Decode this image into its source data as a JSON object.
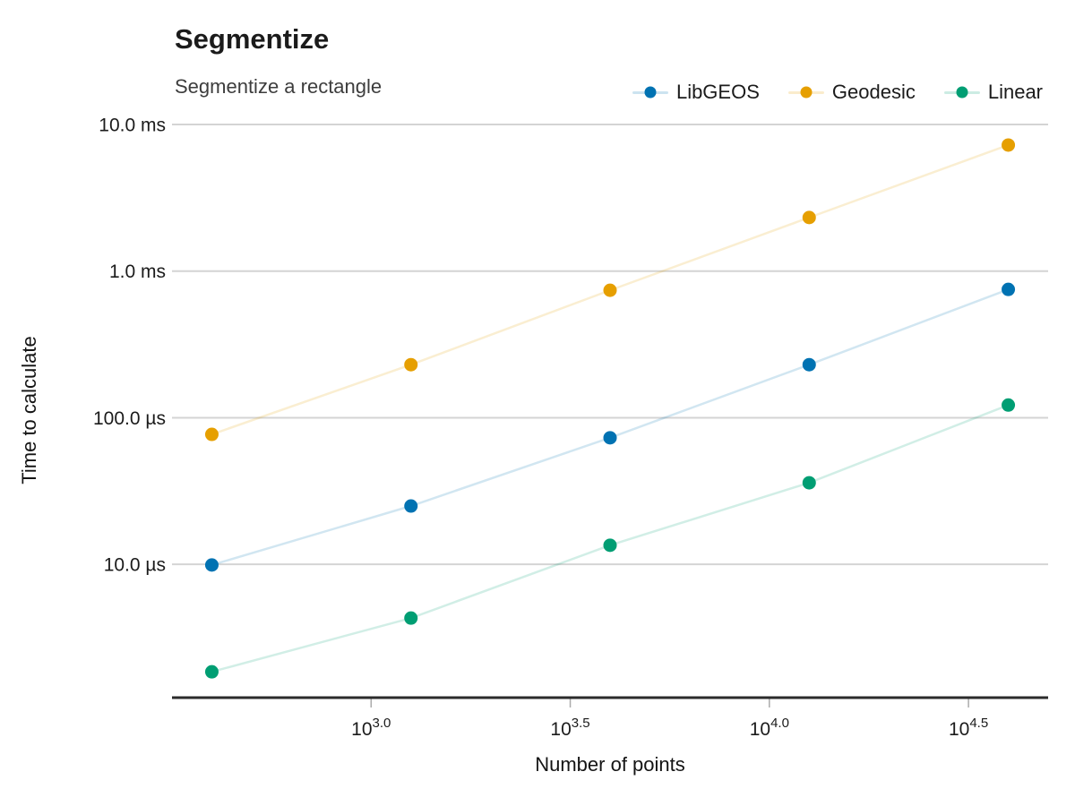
{
  "title": "Segmentize",
  "subtitle": "Segmentize a rectangle",
  "colors": {
    "title_text": "#1b1b1b",
    "subtitle_text": "#3d3d3d",
    "gridline": "#d4d4d4",
    "axis_spine": "#2b2b2b",
    "tick_mark": "#ababab",
    "tick_text": "#1b1b1b"
  },
  "chart_data": {
    "type": "line",
    "title": "Segmentize",
    "subtitle": "Segmentize a rectangle",
    "xlabel": "Number of points",
    "ylabel": "Time to calculate",
    "x_scale": "log10",
    "y_scale": "log10",
    "grid": "horizontal-only",
    "legend_position": "top-right",
    "x_log_range": [
      2.5,
      4.7
    ],
    "y_log_range_log10us": [
      0.097,
      4.0
    ],
    "x_ticks": [
      {
        "mantissa": "10",
        "exponent": "3.0",
        "log10": 3.0
      },
      {
        "mantissa": "10",
        "exponent": "3.5",
        "log10": 3.5
      },
      {
        "mantissa": "10",
        "exponent": "4.0",
        "log10": 4.0
      },
      {
        "mantissa": "10",
        "exponent": "4.5",
        "log10": 4.5
      }
    ],
    "y_ticks": [
      {
        "label": "10.0 ms",
        "us": 10000
      },
      {
        "label": "1.0 ms",
        "us": 1000
      },
      {
        "label": "100.0 µs",
        "us": 100
      },
      {
        "label": "10.0 µs",
        "us": 10
      }
    ],
    "x_points_log10": [
      2.6,
      3.1,
      3.6,
      4.1,
      4.6
    ],
    "x_points_approx": [
      398,
      1259,
      3981,
      12589,
      39811
    ],
    "series": [
      {
        "name": "LibGEOS",
        "color": "#0072B2",
        "values_us": [
          9.9,
          25,
          73,
          230,
          750
        ]
      },
      {
        "name": "Geodesic",
        "color": "#E69F00",
        "values_us": [
          77,
          230,
          740,
          2320,
          7240
        ]
      },
      {
        "name": "Linear",
        "color": "#009E73",
        "values_us": [
          1.85,
          4.3,
          13.5,
          36,
          122
        ]
      }
    ]
  }
}
